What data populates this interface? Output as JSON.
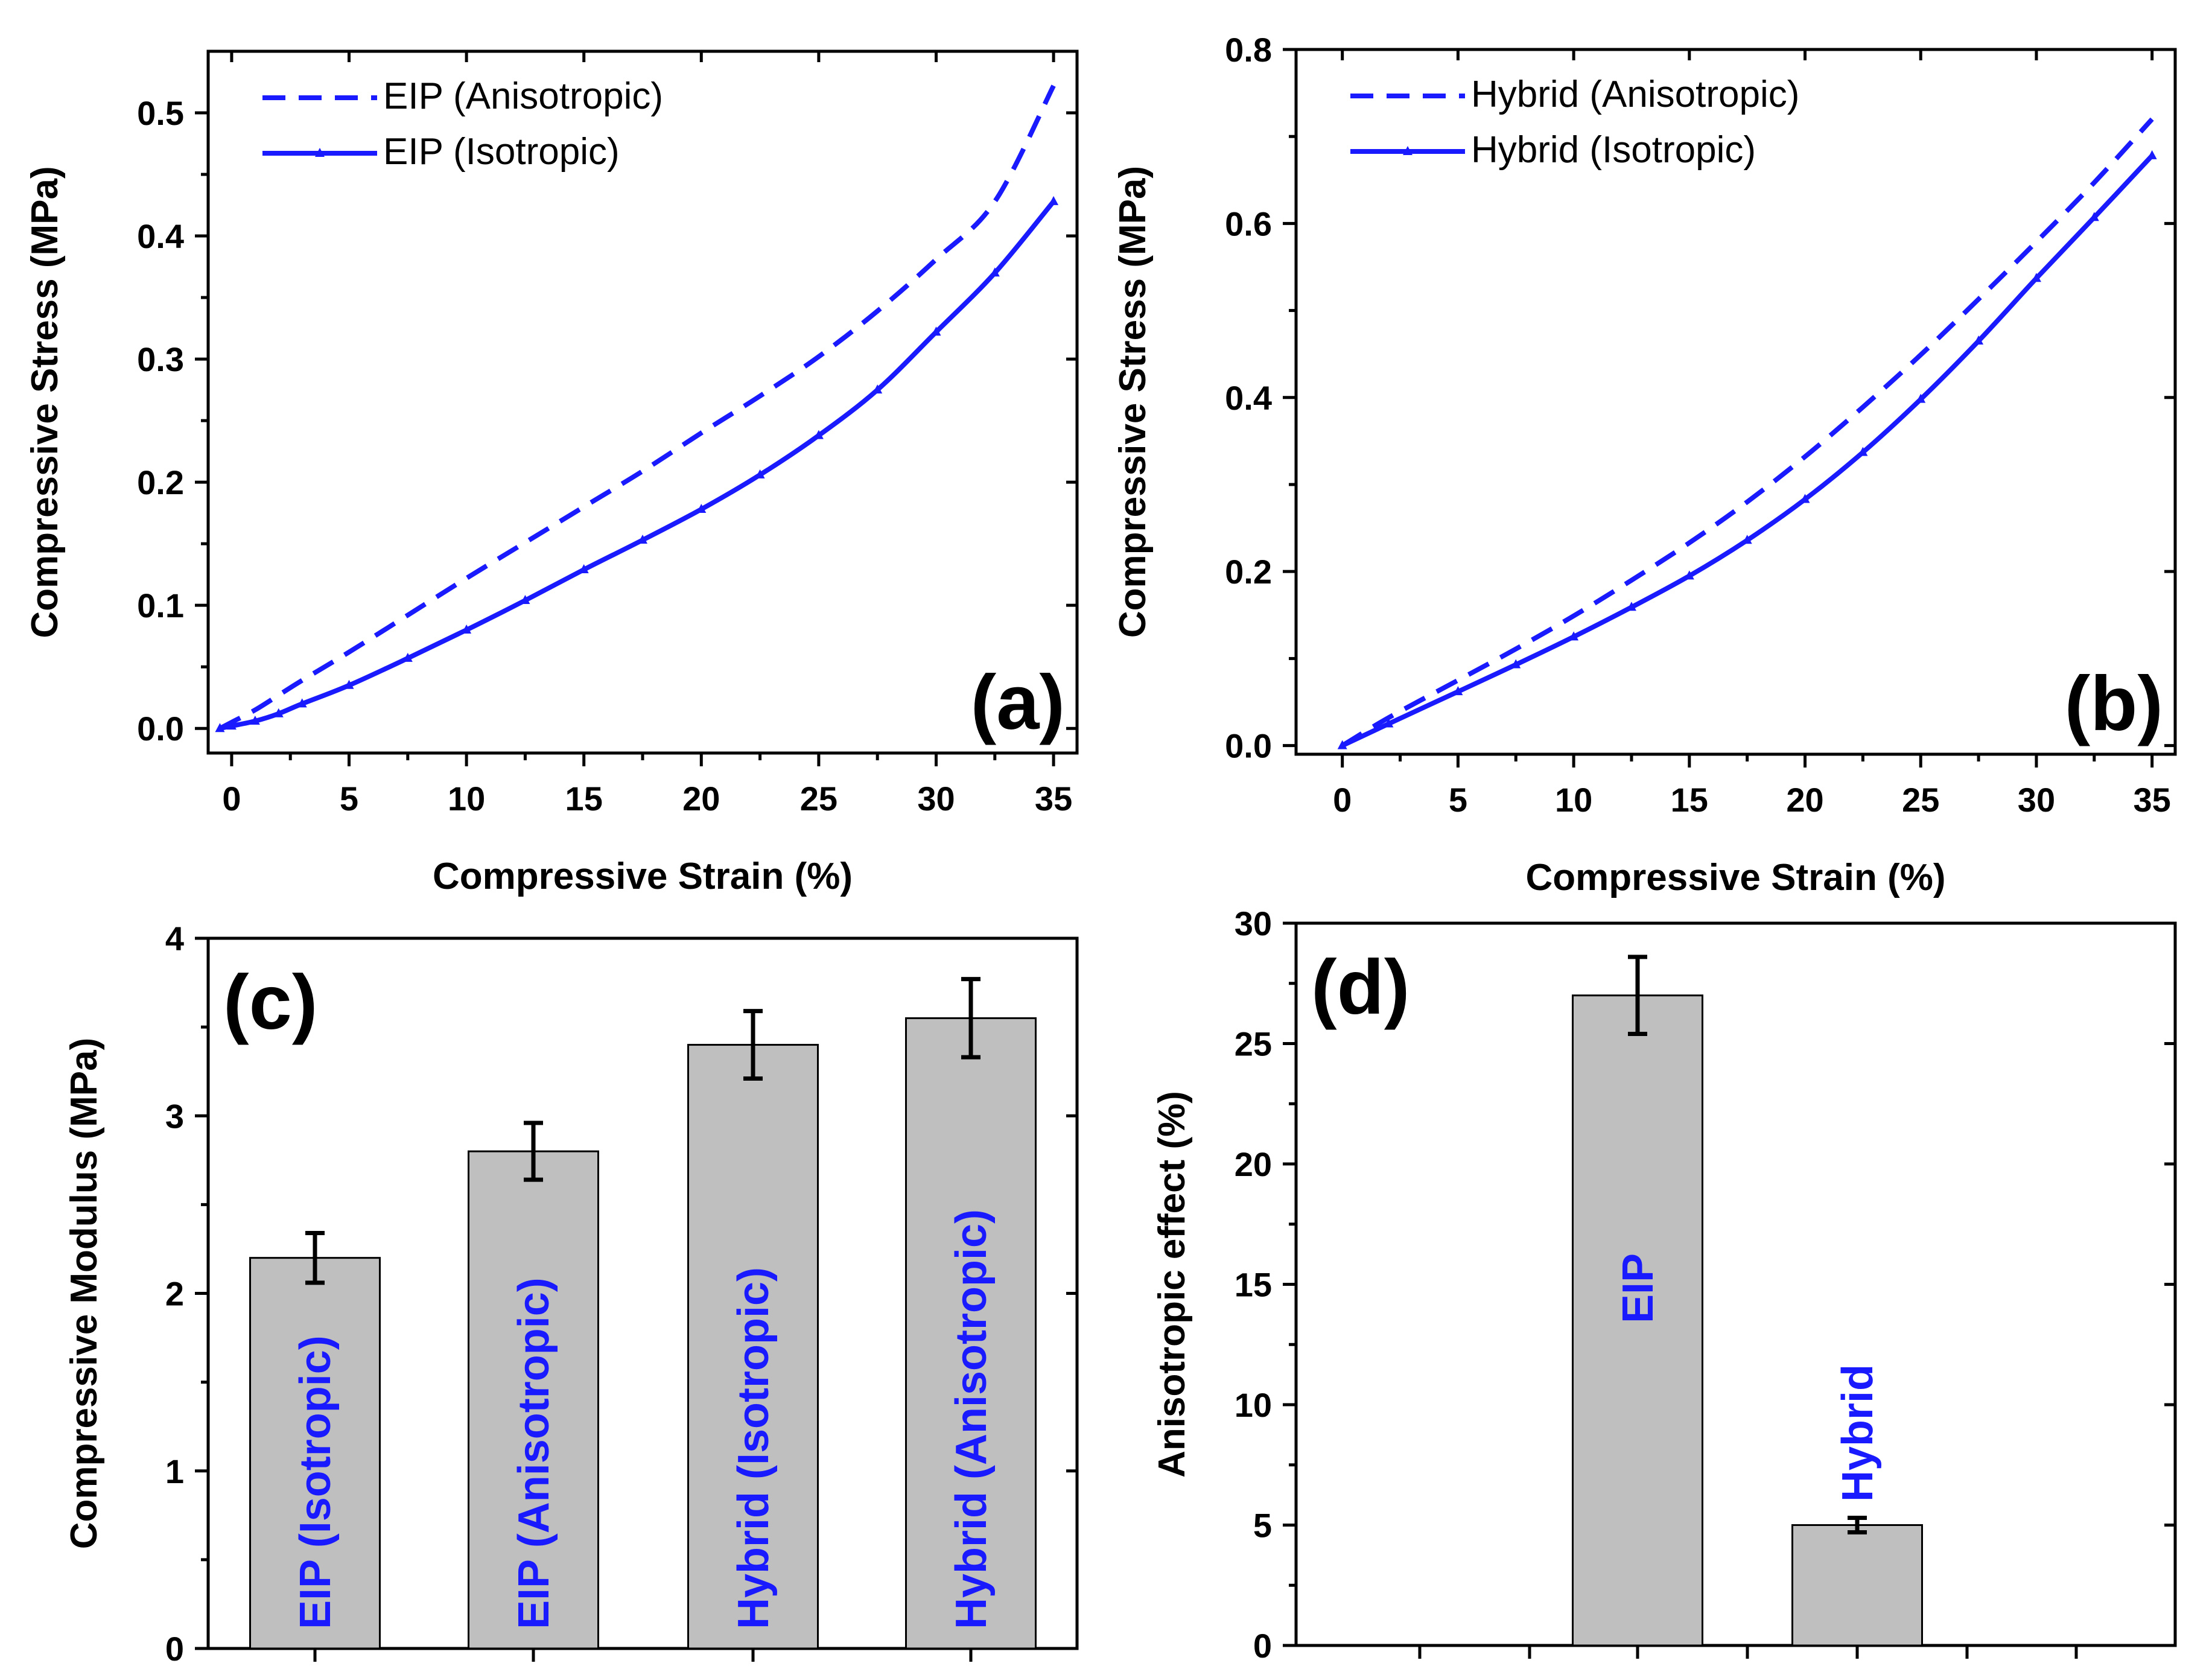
{
  "chart_data": [
    {
      "id": "a",
      "type": "line",
      "panel_label": "(a)",
      "xlabel": "Compressive Strain (%)",
      "ylabel": "Compressive Stress (MPa)",
      "xlim": [
        -1,
        36
      ],
      "ylim": [
        -0.02,
        0.55
      ],
      "xticks": [
        0,
        5,
        10,
        15,
        20,
        25,
        30,
        35
      ],
      "xtick_labels": [
        "0",
        "5",
        "10",
        "15",
        "20",
        "25",
        "30",
        "35"
      ],
      "yticks": [
        0.0,
        0.1,
        0.2,
        0.3,
        0.4,
        0.5
      ],
      "ytick_labels": [
        "0.0",
        "0.1",
        "0.2",
        "0.3",
        "0.4",
        "0.5"
      ],
      "legend_position": "top-left",
      "series": [
        {
          "name": "EIP (Anisotropic)",
          "style": "dashed",
          "x": [
            -0.5,
            0,
            1,
            2,
            3,
            5,
            7.5,
            10,
            12.5,
            15,
            17.5,
            20,
            22.5,
            25,
            27.5,
            30,
            32.5,
            35
          ],
          "y": [
            0.0,
            0.005,
            0.015,
            0.027,
            0.039,
            0.062,
            0.092,
            0.122,
            0.151,
            0.18,
            0.209,
            0.24,
            0.27,
            0.302,
            0.339,
            0.381,
            0.428,
            0.522
          ]
        },
        {
          "name": "EIP (Isotropic)",
          "style": "solid-markers",
          "x": [
            -0.5,
            0,
            1,
            2,
            3,
            5,
            7.5,
            10,
            12.5,
            15,
            17.5,
            20,
            22.5,
            25,
            27.5,
            30,
            32.5,
            35
          ],
          "y": [
            0.0,
            0.002,
            0.006,
            0.012,
            0.02,
            0.035,
            0.057,
            0.08,
            0.104,
            0.129,
            0.153,
            0.178,
            0.206,
            0.238,
            0.275,
            0.322,
            0.37,
            0.428
          ]
        }
      ]
    },
    {
      "id": "b",
      "type": "line",
      "panel_label": "(b)",
      "xlabel": "Compressive Strain (%)",
      "ylabel": "Compressive Stress (MPa)",
      "xlim": [
        -2,
        36
      ],
      "ylim": [
        -0.01,
        0.8
      ],
      "xticks": [
        0,
        5,
        10,
        15,
        20,
        25,
        30,
        35
      ],
      "xtick_labels": [
        "0",
        "5",
        "10",
        "15",
        "20",
        "25",
        "30",
        "35"
      ],
      "yticks": [
        0.0,
        0.2,
        0.4,
        0.6,
        0.8
      ],
      "ytick_labels": [
        "0.0",
        "0.2",
        "0.4",
        "0.6",
        "0.8"
      ],
      "legend_position": "top-left",
      "series": [
        {
          "name": "Hybrid (Anisotropic)",
          "style": "dashed",
          "x": [
            0,
            2,
            5,
            7.5,
            10,
            12.5,
            15,
            17.5,
            20,
            22.5,
            25,
            27.5,
            30,
            32.5,
            35
          ],
          "y": [
            0.0,
            0.032,
            0.075,
            0.111,
            0.149,
            0.19,
            0.233,
            0.28,
            0.332,
            0.389,
            0.449,
            0.513,
            0.579,
            0.647,
            0.72
          ]
        },
        {
          "name": "Hybrid (Isotropic)",
          "style": "solid-markers",
          "x": [
            0,
            2,
            5,
            7.5,
            10,
            12.5,
            15,
            17.5,
            20,
            22.5,
            25,
            27.5,
            30,
            32.5,
            35
          ],
          "y": [
            0.0,
            0.025,
            0.062,
            0.093,
            0.125,
            0.159,
            0.195,
            0.236,
            0.283,
            0.337,
            0.398,
            0.465,
            0.537,
            0.607,
            0.678
          ]
        }
      ]
    },
    {
      "id": "c",
      "type": "bar",
      "panel_label": "(c)",
      "xlabel": "",
      "ylabel": "Compressive Modulus (MPa)",
      "ylim": [
        0,
        4
      ],
      "yticks": [
        0,
        1,
        2,
        3,
        4
      ],
      "ytick_labels": [
        "0",
        "1",
        "2",
        "3",
        "4"
      ],
      "categories": [
        "EIP (Isotropic)",
        "EIP (Anisotropic)",
        "Hybrid (Isotropic)",
        "Hybrid (Anisotropic)"
      ],
      "values": [
        2.2,
        2.8,
        3.4,
        3.55
      ],
      "errors": [
        0.14,
        0.16,
        0.19,
        0.22
      ]
    },
    {
      "id": "d",
      "type": "bar",
      "panel_label": "(d)",
      "xlabel": "",
      "ylabel": "Anisotropic effect (%)",
      "ylim": [
        0,
        30
      ],
      "yticks": [
        0,
        5,
        10,
        15,
        20,
        25,
        30
      ],
      "ytick_labels": [
        "0",
        "5",
        "10",
        "15",
        "20",
        "25",
        "30"
      ],
      "categories": [
        "EIP",
        "Hybrid"
      ],
      "values": [
        27,
        5
      ],
      "errors": [
        1.6,
        0.3
      ]
    }
  ]
}
